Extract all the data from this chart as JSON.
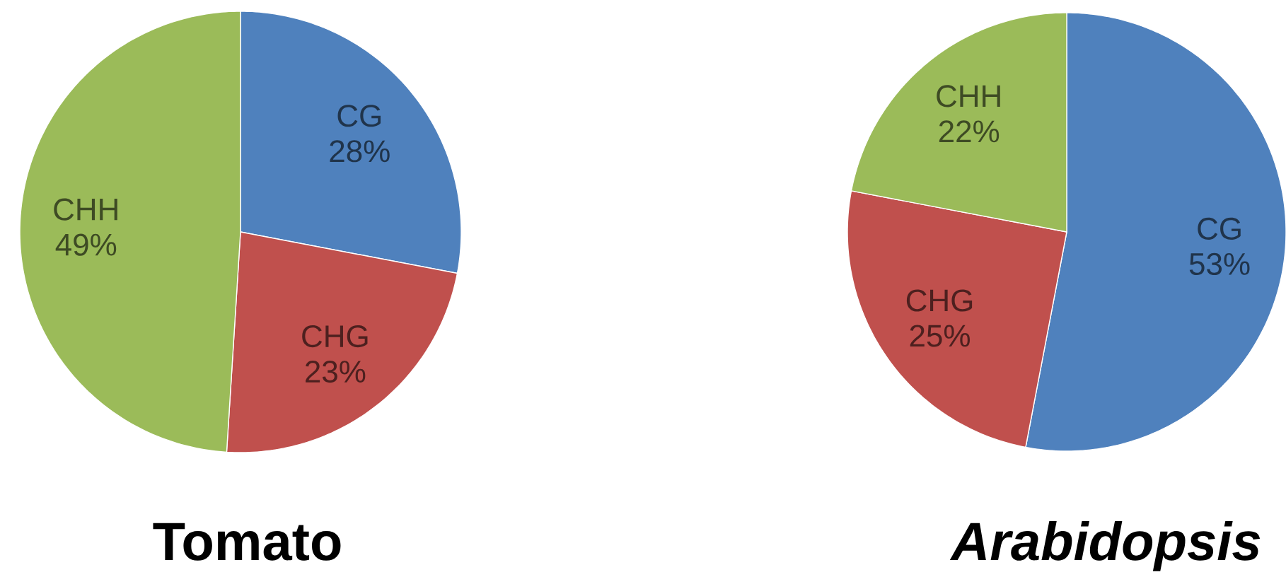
{
  "chart_data": [
    {
      "type": "pie",
      "title": "Tomato",
      "categories": [
        "CG",
        "CHG",
        "CHH"
      ],
      "values": [
        28,
        23,
        49
      ],
      "colors": [
        "#4f81bd",
        "#c0504d",
        "#9bbb59"
      ],
      "value_labels": [
        "28%",
        "23%",
        "49%"
      ]
    },
    {
      "type": "pie",
      "title": "Arabidopsis",
      "categories": [
        "CG",
        "CHG",
        "CHH"
      ],
      "values": [
        53,
        25,
        22
      ],
      "colors": [
        "#4f81bd",
        "#c0504d",
        "#9bbb59"
      ],
      "value_labels": [
        "53%",
        "25%",
        "22%"
      ]
    }
  ]
}
